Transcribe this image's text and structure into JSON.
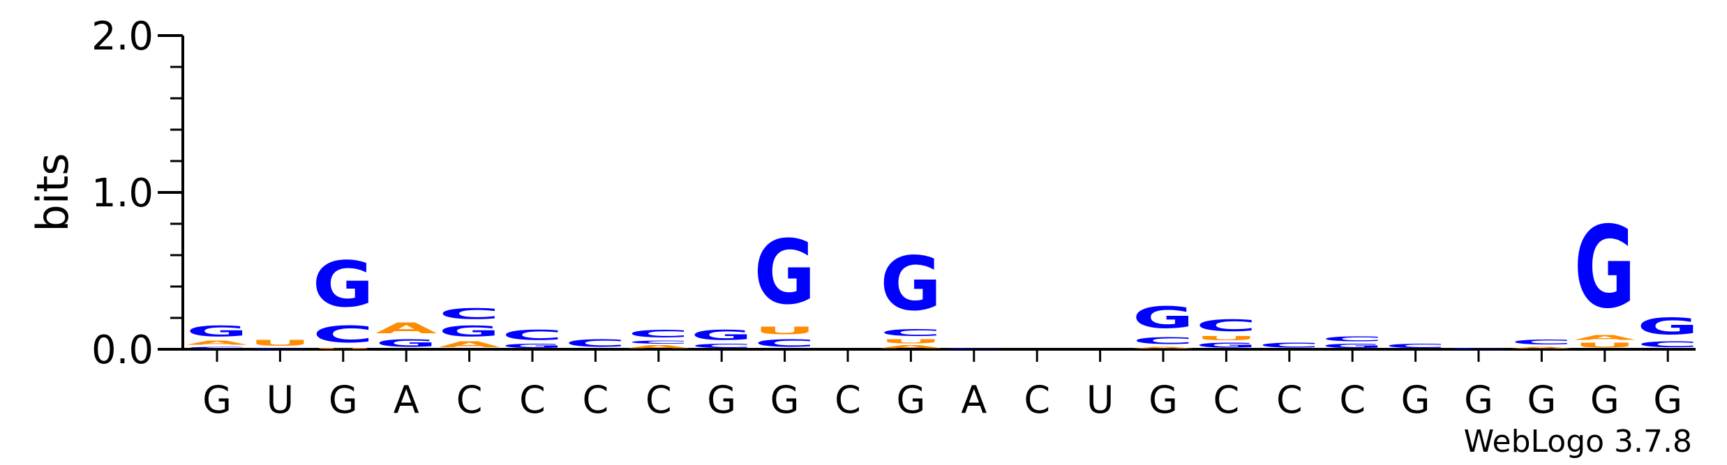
{
  "chart_data": {
    "type": "sequence-logo",
    "ylabel": "bits",
    "ylim": [
      0,
      2
    ],
    "y_ticks": [
      "0.0",
      "1.0",
      "2.0"
    ],
    "x_labels": [
      "G",
      "U",
      "G",
      "A",
      "C",
      "C",
      "C",
      "C",
      "G",
      "G",
      "C",
      "G",
      "A",
      "C",
      "U",
      "G",
      "C",
      "C",
      "C",
      "G",
      "G",
      "G",
      "G",
      "G"
    ],
    "colors": {
      "A": "#ff8c00",
      "C": "#0000ff",
      "G": "#0000ff",
      "U": "#ff8c00"
    },
    "positions": [
      [
        [
          "C",
          0.02
        ],
        [
          "A",
          0.04
        ],
        [
          "G",
          0.11
        ]
      ],
      [
        [
          "C",
          0.01
        ],
        [
          "U",
          0.06
        ]
      ],
      [
        [
          "U",
          0.01
        ],
        [
          "C",
          0.17
        ],
        [
          "G",
          0.47
        ]
      ],
      [
        [
          "G",
          0.08
        ],
        [
          "A",
          0.11
        ]
      ],
      [
        [
          "A",
          0.06
        ],
        [
          "G",
          0.11
        ],
        [
          "C",
          0.11
        ]
      ],
      [
        [
          "G",
          0.04
        ],
        [
          "C",
          0.1
        ]
      ],
      [
        [
          "C",
          0.08
        ]
      ],
      [
        [
          "A",
          0.03
        ],
        [
          "C",
          0.03
        ],
        [
          "C",
          0.08
        ]
      ],
      [
        [
          "C",
          0.04
        ],
        [
          "G",
          0.1
        ]
      ],
      [
        [
          "C",
          0.08
        ],
        [
          "U",
          0.08
        ],
        [
          "G",
          0.66
        ]
      ],
      [],
      [
        [
          "A",
          0.03
        ],
        [
          "U",
          0.04
        ],
        [
          "C",
          0.07
        ],
        [
          "G",
          0.55
        ]
      ],
      [
        [
          "C",
          0.01
        ]
      ],
      [],
      [],
      [
        [
          "A",
          0.02
        ],
        [
          "C",
          0.07
        ],
        [
          "G",
          0.22
        ]
      ],
      [
        [
          "G",
          0.05
        ],
        [
          "U",
          0.04
        ],
        [
          "C",
          0.12
        ]
      ],
      [
        [
          "C",
          0.05
        ]
      ],
      [
        [
          "G",
          0.04
        ],
        [
          "C",
          0.05
        ]
      ],
      [
        [
          "C",
          0.04
        ]
      ],
      [
        [
          "C",
          0.01
        ]
      ],
      [
        [
          "A",
          0.02
        ],
        [
          "C",
          0.05
        ]
      ],
      [
        [
          "U",
          0.05
        ],
        [
          "A",
          0.05
        ],
        [
          "G",
          0.84
        ]
      ],
      [
        [
          "C",
          0.06
        ],
        [
          "G",
          0.17
        ]
      ]
    ]
  },
  "watermark": "WebLogo 3.7.8"
}
